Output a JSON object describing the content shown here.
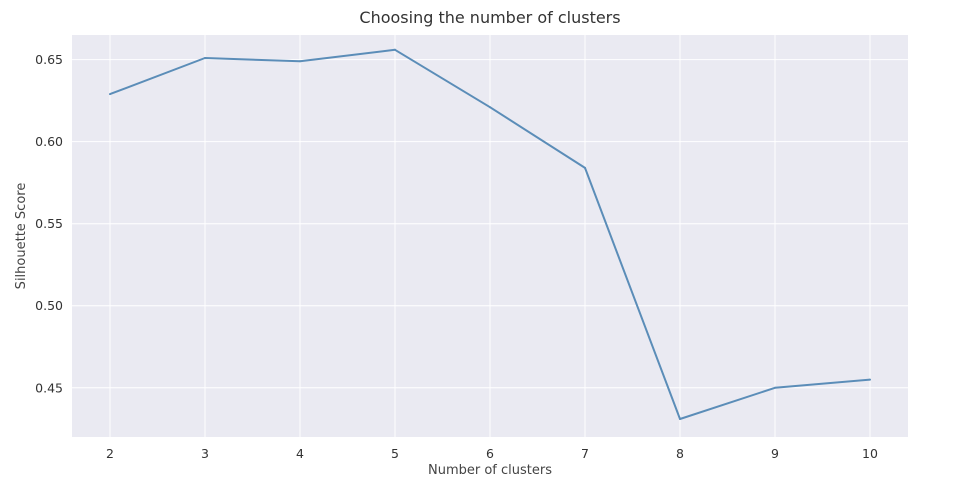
{
  "chart_data": {
    "type": "line",
    "title": "Choosing the number of clusters",
    "xlabel": "Number of clusters",
    "ylabel": "Silhouette Score",
    "x": [
      2,
      3,
      4,
      5,
      6,
      7,
      8,
      9,
      10
    ],
    "series": [
      {
        "values": [
          0.629,
          0.651,
          0.649,
          0.656,
          0.621,
          0.584,
          0.431,
          0.45,
          0.455
        ]
      }
    ],
    "x_ticks": [
      2,
      3,
      4,
      5,
      6,
      7,
      8,
      9,
      10
    ],
    "y_ticks": [
      0.45,
      0.5,
      0.55,
      0.6,
      0.65
    ],
    "xlim": [
      1.6,
      10.4
    ],
    "ylim": [
      0.42,
      0.665
    ],
    "grid": true,
    "colors": {
      "plot_background": "#eaeaf2",
      "line": "#5b8db8",
      "grid": "#ffffff"
    }
  }
}
